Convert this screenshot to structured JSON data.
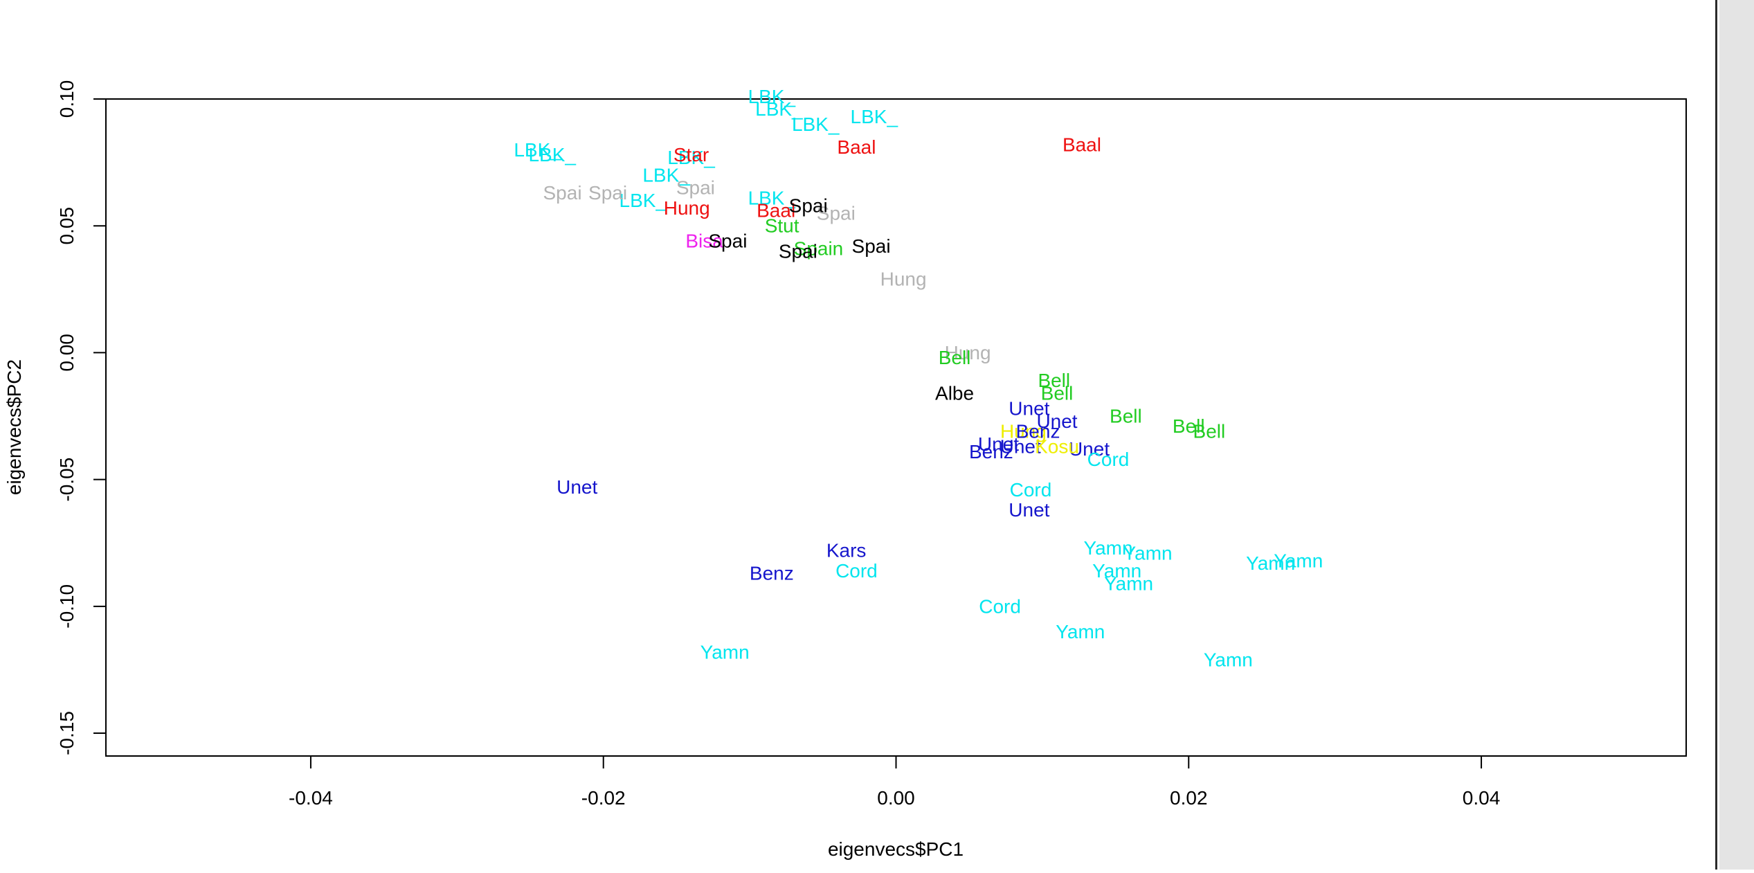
{
  "colors": {
    "background": "#ffffff",
    "axis": "#000000",
    "LBK": "#00e5ee",
    "Baal": "#ee1111",
    "Spai_grey": "#b3b3b3",
    "Spai_black": "#000000",
    "Stut": "#22cc22",
    "Bell": "#22cc22",
    "Unet": "#1515cc",
    "Yamn": "#00e5ee",
    "Cord": "#00e5ee",
    "Kars": "#1515cc",
    "Benz": "#1515cc",
    "Hung_red": "#ee1111",
    "Hung_grey": "#b3b3b3",
    "Star": "#ee1111",
    "Albe": "#000000",
    "Kosu": "#eeee00",
    "magenta": "#ee22ee"
  },
  "chart_data": {
    "type": "scatter",
    "title": "",
    "xlabel": "eigenvecs$PC1",
    "ylabel": "eigenvecs$PC2",
    "xlim": [
      -0.054,
      0.054
    ],
    "ylim": [
      -0.159,
      0.1
    ],
    "xticks": [
      -0.04,
      -0.02,
      0.0,
      0.02,
      0.04
    ],
    "xtick_labels": [
      "-0.04",
      "-0.02",
      "0.00",
      "0.02",
      "0.04"
    ],
    "yticks": [
      -0.15,
      -0.1,
      -0.05,
      0.0,
      0.05,
      0.1
    ],
    "ytick_labels": [
      "-0.15",
      "-0.10",
      "-0.05",
      "0.00",
      "0.05",
      "0.10"
    ],
    "grid": false,
    "points": [
      {
        "x": -0.0085,
        "y": 0.101,
        "label": "LBK_",
        "color": "#00e5ee"
      },
      {
        "x": -0.008,
        "y": 0.096,
        "label": "LBK_",
        "color": "#00e5ee"
      },
      {
        "x": -0.0055,
        "y": 0.09,
        "label": "LBK_",
        "color": "#00e5ee"
      },
      {
        "x": -0.0015,
        "y": 0.093,
        "label": "LBK_",
        "color": "#00e5ee"
      },
      {
        "x": -0.0245,
        "y": 0.08,
        "label": "LBK_",
        "color": "#00e5ee"
      },
      {
        "x": -0.0235,
        "y": 0.078,
        "label": "LBK_",
        "color": "#00e5ee"
      },
      {
        "x": -0.014,
        "y": 0.077,
        "label": "LBK_",
        "color": "#00e5ee"
      },
      {
        "x": -0.0157,
        "y": 0.07,
        "label": "LBK_",
        "color": "#00e5ee"
      },
      {
        "x": -0.0173,
        "y": 0.06,
        "label": "LBK_",
        "color": "#00e5ee"
      },
      {
        "x": -0.0085,
        "y": 0.061,
        "label": "LBK_",
        "color": "#00e5ee"
      },
      {
        "x": -0.014,
        "y": 0.078,
        "label": "Star",
        "color": "#ee1111"
      },
      {
        "x": -0.0027,
        "y": 0.081,
        "label": "Baal",
        "color": "#ee1111"
      },
      {
        "x": 0.0127,
        "y": 0.082,
        "label": "Baal",
        "color": "#ee1111"
      },
      {
        "x": -0.0082,
        "y": 0.056,
        "label": "Baal",
        "color": "#ee1111"
      },
      {
        "x": -0.0143,
        "y": 0.057,
        "label": "Hung",
        "color": "#ee1111"
      },
      {
        "x": -0.0137,
        "y": 0.065,
        "label": "Spai",
        "color": "#b3b3b3"
      },
      {
        "x": -0.0228,
        "y": 0.063,
        "label": "Spai",
        "color": "#b3b3b3"
      },
      {
        "x": -0.0197,
        "y": 0.063,
        "label": "Spai",
        "color": "#b3b3b3"
      },
      {
        "x": -0.0041,
        "y": 0.055,
        "label": "Spai",
        "color": "#b3b3b3"
      },
      {
        "x": -0.006,
        "y": 0.058,
        "label": "Spai",
        "color": "#000000"
      },
      {
        "x": -0.0078,
        "y": 0.05,
        "label": "Stut",
        "color": "#22cc22"
      },
      {
        "x": -0.0131,
        "y": 0.044,
        "label": "Bisa",
        "color": "#ee22ee"
      },
      {
        "x": -0.0115,
        "y": 0.044,
        "label": "Spai",
        "color": "#000000"
      },
      {
        "x": -0.0053,
        "y": 0.041,
        "label": "Spain",
        "color": "#22cc22"
      },
      {
        "x": -0.0067,
        "y": 0.04,
        "label": "Spai",
        "color": "#000000"
      },
      {
        "x": -0.0017,
        "y": 0.042,
        "label": "Spai",
        "color": "#000000"
      },
      {
        "x": 0.0005,
        "y": 0.029,
        "label": "Hung",
        "color": "#b3b3b3"
      },
      {
        "x": 0.0049,
        "y": 0.0,
        "label": "Hung",
        "color": "#b3b3b3"
      },
      {
        "x": 0.004,
        "y": -0.002,
        "label": "Bell",
        "color": "#22cc22"
      },
      {
        "x": 0.0108,
        "y": -0.011,
        "label": "Bell",
        "color": "#22cc22"
      },
      {
        "x": 0.011,
        "y": -0.016,
        "label": "Bell",
        "color": "#22cc22"
      },
      {
        "x": 0.0157,
        "y": -0.025,
        "label": "Bell",
        "color": "#22cc22"
      },
      {
        "x": 0.02,
        "y": -0.029,
        "label": "Bell",
        "color": "#22cc22"
      },
      {
        "x": 0.0214,
        "y": -0.031,
        "label": "Bell",
        "color": "#22cc22"
      },
      {
        "x": 0.004,
        "y": -0.016,
        "label": "Albe",
        "color": "#000000"
      },
      {
        "x": 0.0091,
        "y": -0.022,
        "label": "Unet",
        "color": "#1515cc"
      },
      {
        "x": 0.011,
        "y": -0.027,
        "label": "Unet",
        "color": "#1515cc"
      },
      {
        "x": 0.007,
        "y": -0.036,
        "label": "Unet",
        "color": "#1515cc"
      },
      {
        "x": 0.0085,
        "y": -0.037,
        "label": "Unet",
        "color": "#1515cc"
      },
      {
        "x": 0.0132,
        "y": -0.038,
        "label": "Unet",
        "color": "#1515cc"
      },
      {
        "x": 0.0087,
        "y": -0.031,
        "label": "Hung",
        "color": "#eeee00"
      },
      {
        "x": 0.0097,
        "y": -0.031,
        "label": "Benz",
        "color": "#1515cc"
      },
      {
        "x": 0.0065,
        "y": -0.039,
        "label": "Benz",
        "color": "#1515cc"
      },
      {
        "x": 0.011,
        "y": -0.037,
        "label": "Kosu",
        "color": "#eeee00"
      },
      {
        "x": 0.0145,
        "y": -0.042,
        "label": "Cord",
        "color": "#00e5ee"
      },
      {
        "x": 0.0092,
        "y": -0.054,
        "label": "Cord",
        "color": "#00e5ee"
      },
      {
        "x": 0.0091,
        "y": -0.062,
        "label": "Unet",
        "color": "#1515cc"
      },
      {
        "x": -0.0218,
        "y": -0.053,
        "label": "Unet",
        "color": "#1515cc"
      },
      {
        "x": -0.0034,
        "y": -0.078,
        "label": "Kars",
        "color": "#1515cc"
      },
      {
        "x": -0.0085,
        "y": -0.087,
        "label": "Benz",
        "color": "#1515cc"
      },
      {
        "x": -0.0027,
        "y": -0.086,
        "label": "Cord",
        "color": "#00e5ee"
      },
      {
        "x": 0.0071,
        "y": -0.1,
        "label": "Cord",
        "color": "#00e5ee"
      },
      {
        "x": -0.0117,
        "y": -0.118,
        "label": "Yamn",
        "color": "#00e5ee"
      },
      {
        "x": 0.0145,
        "y": -0.077,
        "label": "Yamn",
        "color": "#00e5ee"
      },
      {
        "x": 0.0172,
        "y": -0.079,
        "label": "Yamn",
        "color": "#00e5ee"
      },
      {
        "x": 0.0151,
        "y": -0.086,
        "label": "Yamn",
        "color": "#00e5ee"
      },
      {
        "x": 0.0159,
        "y": -0.091,
        "label": "Yamn",
        "color": "#00e5ee"
      },
      {
        "x": 0.0126,
        "y": -0.11,
        "label": "Yamn",
        "color": "#00e5ee"
      },
      {
        "x": 0.0227,
        "y": -0.121,
        "label": "Yamn",
        "color": "#00e5ee"
      },
      {
        "x": 0.0256,
        "y": -0.083,
        "label": "Yamn",
        "color": "#00e5ee"
      },
      {
        "x": 0.0275,
        "y": -0.082,
        "label": "Yamn",
        "color": "#00e5ee"
      }
    ]
  }
}
